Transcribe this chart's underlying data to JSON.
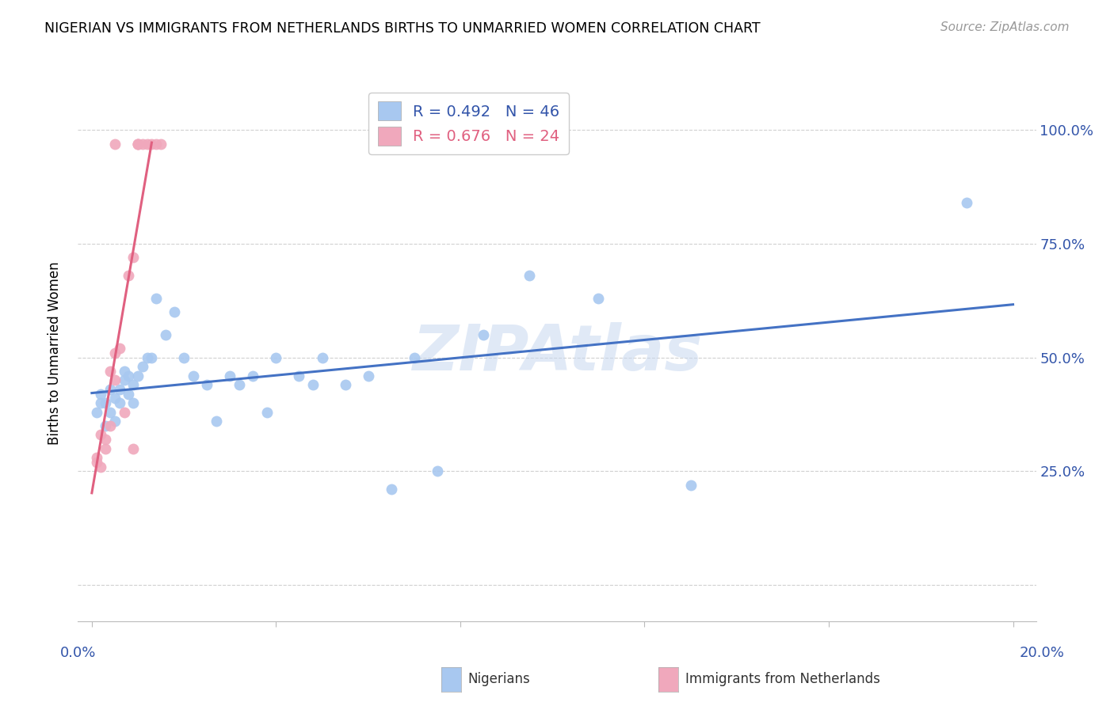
{
  "title": "NIGERIAN VS IMMIGRANTS FROM NETHERLANDS BIRTHS TO UNMARRIED WOMEN CORRELATION CHART",
  "source": "Source: ZipAtlas.com",
  "ylabel": "Births to Unmarried Women",
  "blue_color": "#A8C8F0",
  "pink_color": "#F0A8BC",
  "blue_line_color": "#4472C4",
  "pink_line_color": "#E06080",
  "watermark": "ZIPAtlas",
  "legend_r1_text": "R = 0.492",
  "legend_n1_text": "N = 46",
  "legend_r2_text": "R = 0.676",
  "legend_n2_text": "N = 24",
  "nig_x": [
    0.001,
    0.002,
    0.002,
    0.003,
    0.003,
    0.004,
    0.004,
    0.005,
    0.005,
    0.006,
    0.006,
    0.007,
    0.007,
    0.008,
    0.008,
    0.009,
    0.009,
    0.01,
    0.011,
    0.012,
    0.013,
    0.014,
    0.016,
    0.018,
    0.02,
    0.022,
    0.025,
    0.027,
    0.03,
    0.032,
    0.035,
    0.038,
    0.04,
    0.045,
    0.048,
    0.05,
    0.055,
    0.06,
    0.065,
    0.07,
    0.075,
    0.085,
    0.095,
    0.11,
    0.13,
    0.19
  ],
  "nig_y": [
    0.38,
    0.4,
    0.42,
    0.35,
    0.4,
    0.38,
    0.43,
    0.36,
    0.41,
    0.43,
    0.4,
    0.45,
    0.47,
    0.42,
    0.46,
    0.44,
    0.4,
    0.46,
    0.48,
    0.5,
    0.5,
    0.63,
    0.55,
    0.6,
    0.5,
    0.46,
    0.44,
    0.36,
    0.46,
    0.44,
    0.46,
    0.38,
    0.5,
    0.46,
    0.44,
    0.5,
    0.44,
    0.46,
    0.21,
    0.5,
    0.25,
    0.55,
    0.68,
    0.63,
    0.22,
    0.84
  ],
  "net_x": [
    0.001,
    0.001,
    0.002,
    0.002,
    0.003,
    0.003,
    0.004,
    0.004,
    0.005,
    0.005,
    0.005,
    0.006,
    0.007,
    0.008,
    0.009,
    0.009,
    0.01,
    0.01,
    0.01,
    0.011,
    0.012,
    0.013,
    0.014,
    0.015
  ],
  "net_y": [
    0.27,
    0.28,
    0.26,
    0.33,
    0.3,
    0.32,
    0.35,
    0.47,
    0.45,
    0.51,
    0.97,
    0.52,
    0.38,
    0.68,
    0.72,
    0.3,
    0.97,
    0.97,
    0.97,
    0.97,
    0.97,
    0.97,
    0.97,
    0.97
  ],
  "xlim": [
    -0.003,
    0.205
  ],
  "ylim": [
    -0.08,
    1.1
  ],
  "xticks": [
    0.0,
    0.04,
    0.08,
    0.12,
    0.16,
    0.2
  ],
  "yticks": [
    0.0,
    0.25,
    0.5,
    0.75,
    1.0
  ],
  "ytick_labels_right": [
    "25.0%",
    "50.0%",
    "75.0%",
    "100.0%"
  ]
}
